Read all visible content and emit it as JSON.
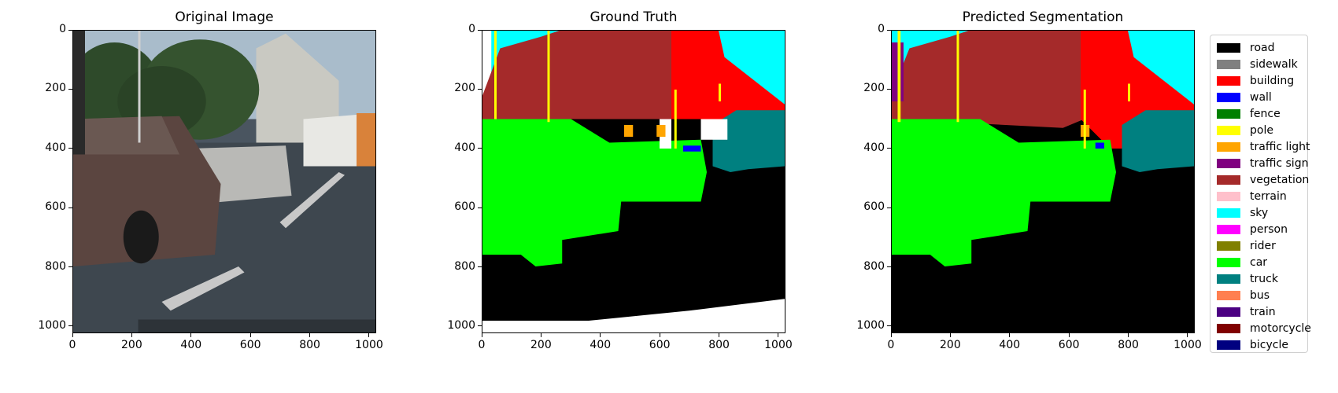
{
  "chart_data": [
    {
      "type": "image",
      "title": "Original Image",
      "xlim": [
        0,
        1024
      ],
      "ylim": [
        1024,
        0
      ],
      "x_ticks": [
        0,
        200,
        400,
        600,
        800,
        1000
      ],
      "y_ticks": [
        0,
        200,
        400,
        600,
        800,
        1000
      ]
    },
    {
      "type": "image",
      "title": "Ground Truth",
      "xlim": [
        0,
        1024
      ],
      "ylim": [
        1024,
        0
      ],
      "x_ticks": [
        0,
        200,
        400,
        600,
        800,
        1000
      ],
      "y_ticks": [
        0,
        200,
        400,
        600,
        800,
        1000
      ]
    },
    {
      "type": "image",
      "title": "Predicted Segmentation",
      "xlim": [
        0,
        1024
      ],
      "ylim": [
        1024,
        0
      ],
      "x_ticks": [
        0,
        200,
        400,
        600,
        800,
        1000
      ],
      "y_ticks": [
        0,
        200,
        400,
        600,
        800,
        1000
      ]
    }
  ],
  "legend": {
    "placement": "right",
    "entries": [
      {
        "label": "road",
        "color": "#000000"
      },
      {
        "label": "sidewalk",
        "color": "#808080"
      },
      {
        "label": "building",
        "color": "#ff0000"
      },
      {
        "label": "wall",
        "color": "#0000ff"
      },
      {
        "label": "fence",
        "color": "#008000"
      },
      {
        "label": "pole",
        "color": "#ffff00"
      },
      {
        "label": "traffic light",
        "color": "#ffa500"
      },
      {
        "label": "traffic sign",
        "color": "#800080"
      },
      {
        "label": "vegetation",
        "color": "#a52a2a"
      },
      {
        "label": "terrain",
        "color": "#ffc0cb"
      },
      {
        "label": "sky",
        "color": "#00ffff"
      },
      {
        "label": "person",
        "color": "#ff00ff"
      },
      {
        "label": "rider",
        "color": "#808000"
      },
      {
        "label": "car",
        "color": "#00ff00"
      },
      {
        "label": "truck",
        "color": "#008080"
      },
      {
        "label": "bus",
        "color": "#ff7f50"
      },
      {
        "label": "train",
        "color": "#4b0082"
      },
      {
        "label": "motorcycle",
        "color": "#800000"
      },
      {
        "label": "bicycle",
        "color": "#000080"
      }
    ]
  }
}
